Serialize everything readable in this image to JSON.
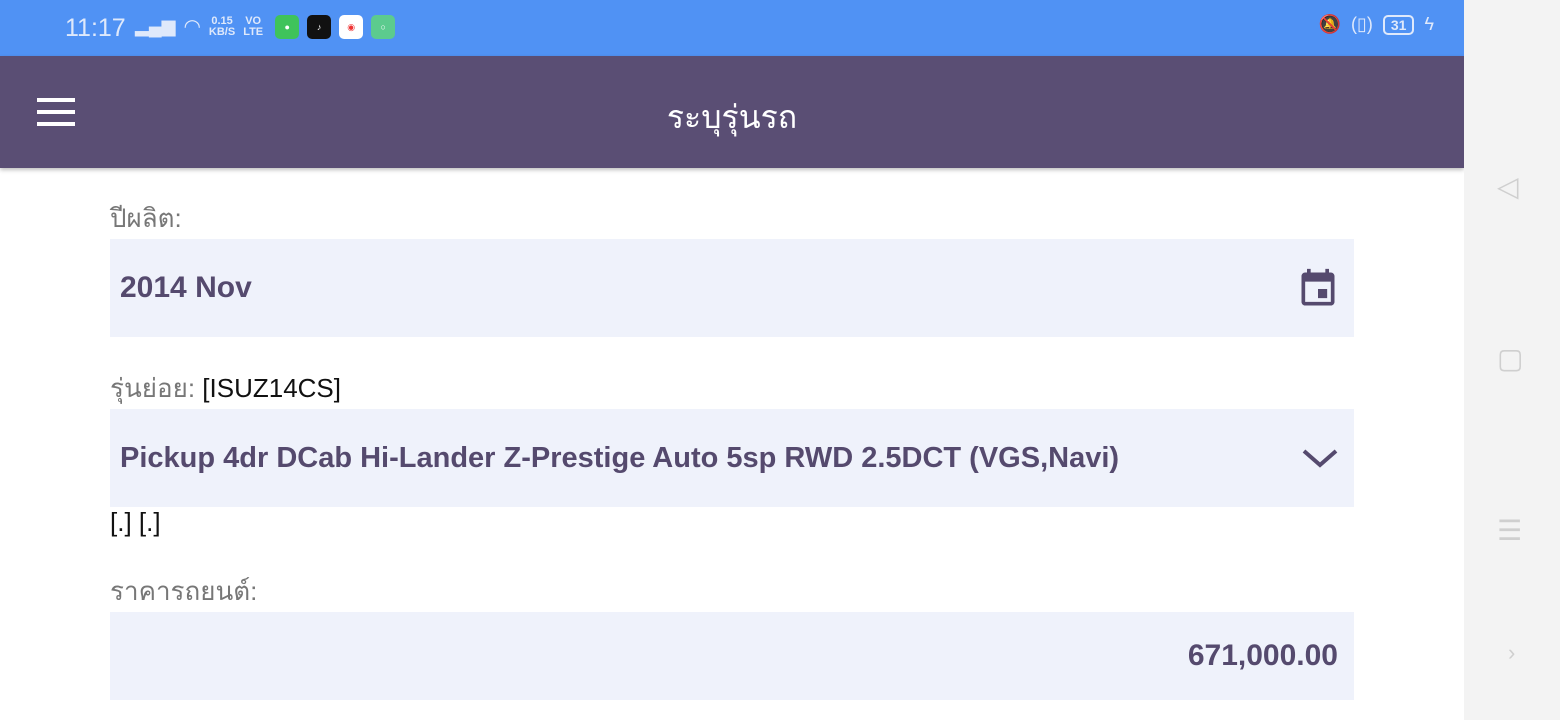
{
  "status_bar": {
    "time": "11:17",
    "net_speed": "0.15",
    "net_unit": "KB/S",
    "volte_1": "VO",
    "volte_2": "LTE",
    "battery": "31",
    "apps": [
      "line",
      "tiktok",
      "chrome",
      "other"
    ]
  },
  "app_bar": {
    "title": "ระบุรุ่นรถ",
    "menu_icon": "hamburger-icon"
  },
  "form": {
    "year_label": "ปีผลิต:",
    "year_value": "2014 Nov",
    "submodel_label": "รุ่นย่อย:",
    "submodel_code": "[ISUZ14CS]",
    "submodel_value": "Pickup 4dr DCab Hi-Lander Z-Prestige Auto 5sp RWD 2.5DCT (VGS,Navi)",
    "extra": "[.] [.]",
    "price_label": "ราคารถยนต์:",
    "price_value": "671,000.00"
  },
  "colors": {
    "status": "#5092f4",
    "appbar": "#5a4e74",
    "field_bg": "#eff2fb",
    "field_text": "#554a6e"
  }
}
